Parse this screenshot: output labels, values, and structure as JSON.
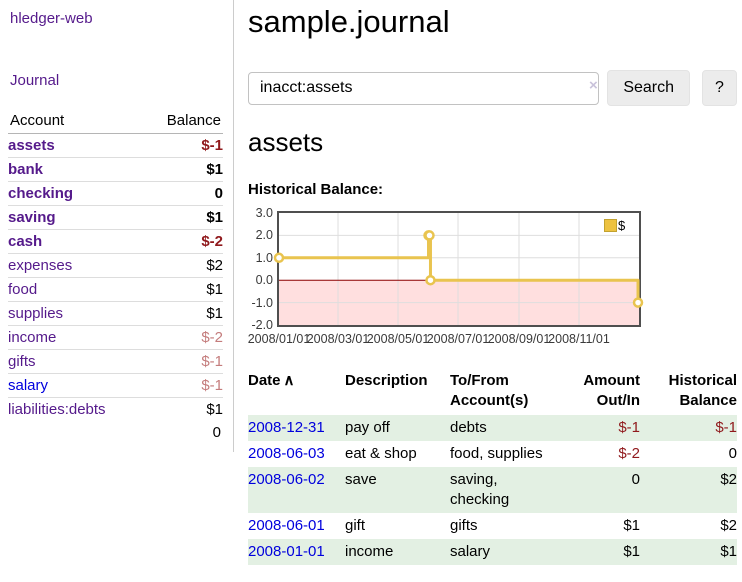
{
  "app": {
    "title": "hledger-web",
    "nav_journal": "Journal"
  },
  "sidebar": {
    "col_account": "Account",
    "col_balance": "Balance",
    "accounts": [
      {
        "name": "assets",
        "indent": 0,
        "bold": true,
        "balance": "$-1",
        "negative": true,
        "link": "visited"
      },
      {
        "name": "bank",
        "indent": 1,
        "bold": true,
        "balance": "$1",
        "negative": false,
        "link": "visited"
      },
      {
        "name": "checking",
        "indent": 2,
        "bold": true,
        "balance": "0",
        "negative": false,
        "link": "visited"
      },
      {
        "name": "saving",
        "indent": 2,
        "bold": true,
        "balance": "$1",
        "negative": false,
        "link": "visited"
      },
      {
        "name": "cash",
        "indent": 1,
        "bold": true,
        "balance": "$-2",
        "negative": true,
        "link": "visited"
      },
      {
        "name": "expenses",
        "indent": 0,
        "bold": false,
        "balance": "$2",
        "negative": false,
        "link": "visited"
      },
      {
        "name": "food",
        "indent": 1,
        "bold": false,
        "balance": "$1",
        "negative": false,
        "link": "visited"
      },
      {
        "name": "supplies",
        "indent": 1,
        "bold": false,
        "balance": "$1",
        "negative": false,
        "link": "visited"
      },
      {
        "name": "income",
        "indent": 0,
        "bold": false,
        "balance": "$-2",
        "negative": true,
        "link": "visited"
      },
      {
        "name": "gifts",
        "indent": 1,
        "bold": false,
        "balance": "$-1",
        "negative": true,
        "link": "visited"
      },
      {
        "name": "salary",
        "indent": 1,
        "bold": false,
        "balance": "$-1",
        "negative": true,
        "link": "unvisited"
      },
      {
        "name": "liabilities:debts",
        "indent": 0,
        "bold": false,
        "balance": "$1",
        "negative": false,
        "link": "visited"
      }
    ],
    "total": "0"
  },
  "header": {
    "journal_title": "sample.journal"
  },
  "search": {
    "query": "inacct:assets",
    "clear_icon": "×",
    "button_label": "Search",
    "help_label": "?"
  },
  "account_page": {
    "title": "assets",
    "chart_heading": "Historical Balance:"
  },
  "chart_data": {
    "type": "line",
    "title": "Historical Balance",
    "series": [
      {
        "name": "$",
        "color": "#e9c44f",
        "step": true,
        "points": [
          {
            "date": "2008/01/01",
            "day": 0,
            "value": 1.0
          },
          {
            "date": "2008/06/01",
            "day": 152,
            "value": 2.0
          },
          {
            "date": "2008/06/02",
            "day": 153,
            "value": 2.0
          },
          {
            "date": "2008/06/03",
            "day": 154,
            "value": 0.0
          },
          {
            "date": "2008/12/31",
            "day": 365,
            "value": -1.0
          }
        ]
      }
    ],
    "x_ticks": [
      {
        "day": 0,
        "label": "2008/01/01"
      },
      {
        "day": 60,
        "label": "2008/03/01"
      },
      {
        "day": 121,
        "label": "2008/05/01"
      },
      {
        "day": 182,
        "label": "2008/07/01"
      },
      {
        "day": 244,
        "label": "2008/09/01"
      },
      {
        "day": 305,
        "label": "2008/11/01"
      }
    ],
    "x_max": 366,
    "y_ticks": [
      3.0,
      2.0,
      1.0,
      0.0,
      -1.0,
      -2.0
    ],
    "ylim": [
      -2.0,
      3.0
    ],
    "legend": {
      "label": "$",
      "position": "top-right"
    },
    "grid": true,
    "grid_color": "#dedede",
    "negative_region_color": "#ffdfdf",
    "zero_line_color": "#8b0000"
  },
  "transactions": {
    "headers": {
      "date": "Date",
      "sort_icon": "∧",
      "description": "Description",
      "accounts_line1": "To/From",
      "accounts_line2": "Account(s)",
      "amount_line1": "Amount",
      "amount_line2": "Out/In",
      "balance_line1": "Historical",
      "balance_line2": "Balance"
    },
    "rows": [
      {
        "date": "2008-12-31",
        "description": "pay off",
        "accounts": "debts",
        "amount": "$-1",
        "amount_negative": true,
        "balance": "$-1",
        "balance_negative": true
      },
      {
        "date": "2008-06-03",
        "description": "eat & shop",
        "accounts": "food, supplies",
        "amount": "$-2",
        "amount_negative": true,
        "balance": "0",
        "balance_negative": false
      },
      {
        "date": "2008-06-02",
        "description": "save",
        "accounts": "saving, checking",
        "amount": "0",
        "amount_negative": false,
        "balance": "$2",
        "balance_negative": false
      },
      {
        "date": "2008-06-01",
        "description": "gift",
        "accounts": "gifts",
        "amount": "$1",
        "amount_negative": false,
        "balance": "$2",
        "balance_negative": false
      },
      {
        "date": "2008-01-01",
        "description": "income",
        "accounts": "salary",
        "amount": "$1",
        "amount_negative": false,
        "balance": "$1",
        "balance_negative": false
      }
    ]
  }
}
